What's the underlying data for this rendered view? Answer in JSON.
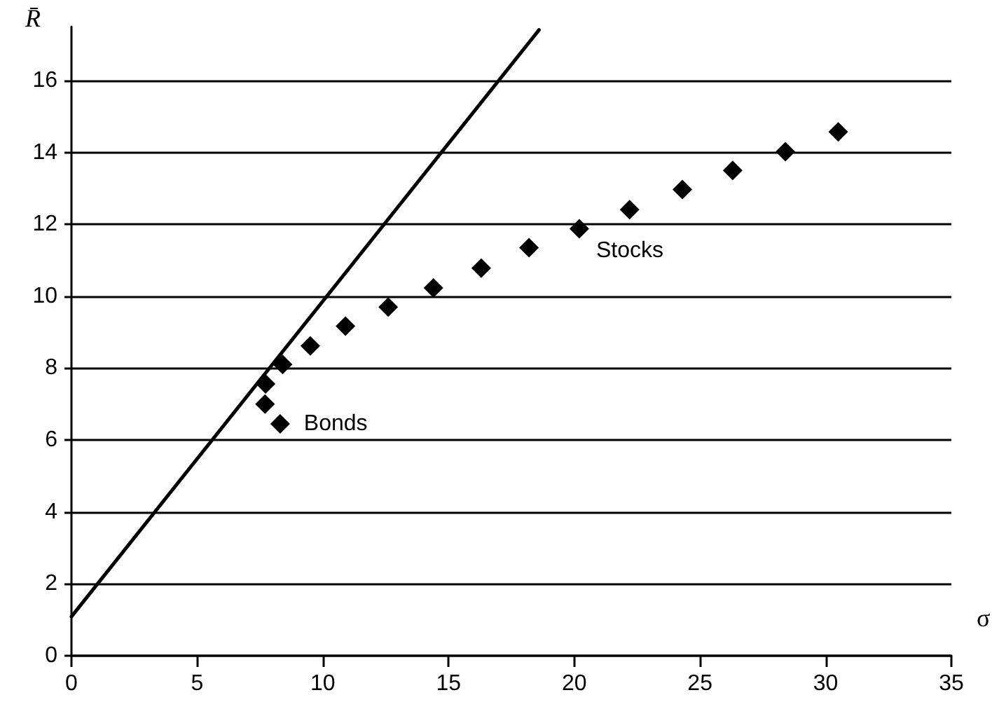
{
  "chart_data": {
    "type": "scatter",
    "xlabel": "σ",
    "ylabel": "R̄",
    "xlim": [
      0,
      35
    ],
    "xticks": [
      0,
      5,
      10,
      15,
      20,
      25,
      30,
      35
    ],
    "ylim": [
      0,
      17.5
    ],
    "yticks": [
      0,
      2,
      4,
      6,
      8,
      10,
      12,
      14,
      16
    ],
    "grid": "y",
    "marker": "diamond",
    "x": [
      8.3,
      7.7,
      7.72,
      8.4,
      9.5,
      10.9,
      12.6,
      14.4,
      16.3,
      18.2,
      20.2,
      22.2,
      24.3,
      26.3,
      28.4,
      30.5
    ],
    "series": [
      {
        "color": "#000000",
        "values": [
          6.45,
          7.0,
          7.56,
          8.1,
          8.62,
          9.17,
          9.7,
          10.23,
          10.78,
          11.35,
          11.88,
          12.41,
          12.97,
          13.5,
          14.02,
          14.57
        ]
      },
      {
        "type": "line",
        "color": "#000000",
        "marker": "none",
        "line_style": "solid",
        "x": [
          0,
          18.6
        ],
        "values": [
          1.09,
          17.41
        ]
      }
    ],
    "annotations": [
      {
        "text": "Bonds",
        "x": 8.3,
        "y": 6.45
      },
      {
        "text": "Stocks",
        "x": 20.2,
        "y": 11.88
      }
    ]
  }
}
